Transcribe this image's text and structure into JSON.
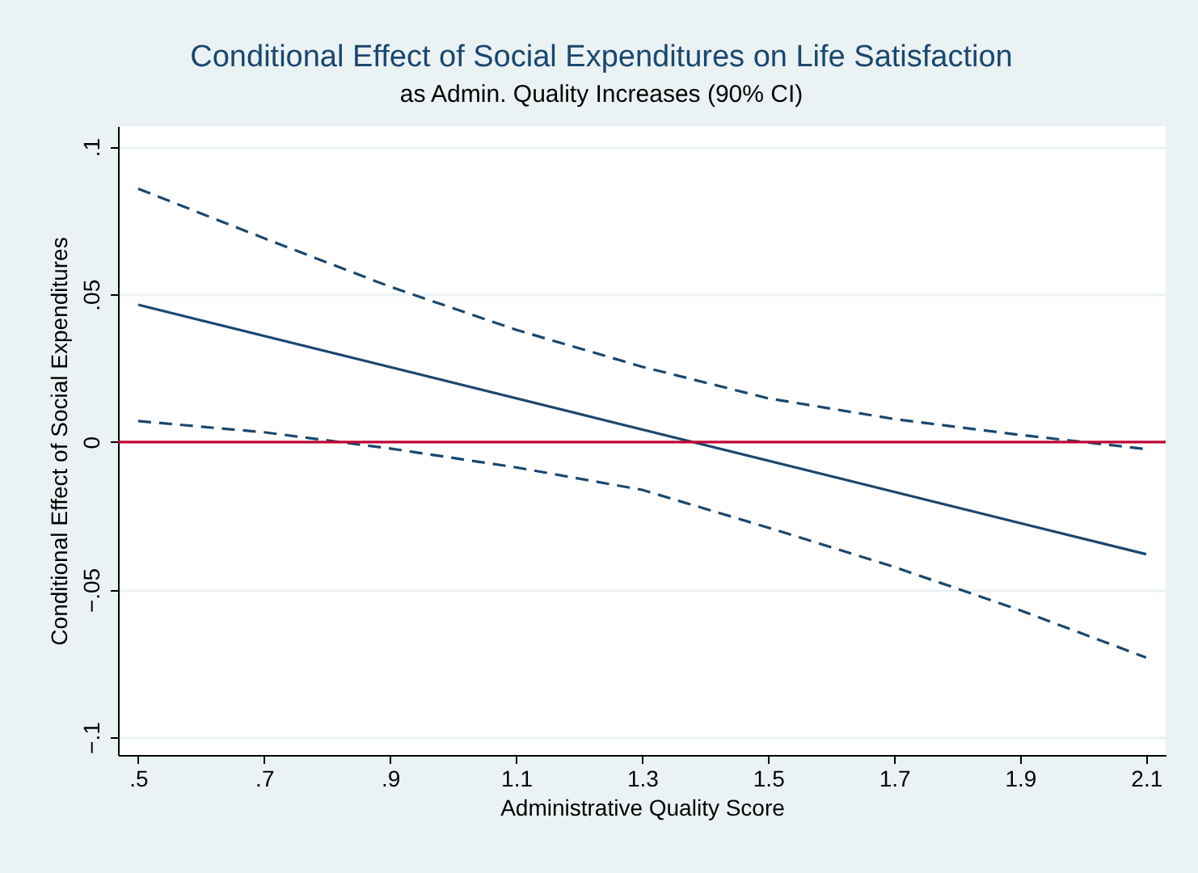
{
  "chart_data": {
    "type": "line",
    "title": "Conditional Effect of Social Expenditures on Life Satisfaction",
    "subtitle": "as Admin. Quality Increases (90% CI)",
    "xlabel": "Administrative Quality Score",
    "ylabel": "Conditional Effect of Social Expenditures",
    "xlim": [
      0.468,
      2.131
    ],
    "ylim": [
      -0.106,
      0.107
    ],
    "xticks": [
      {
        "value": 0.5,
        "label": ".5"
      },
      {
        "value": 0.7,
        "label": ".7"
      },
      {
        "value": 0.9,
        "label": ".9"
      },
      1.1,
      1.3,
      1.5,
      1.7,
      1.9,
      2.1
    ],
    "yticks": [
      {
        "value": -0.1,
        "label": "−.1"
      },
      {
        "value": -0.05,
        "label": "−.05"
      },
      0,
      {
        "value": 0.05,
        "label": ".05"
      },
      {
        "value": 0.1,
        "label": ".1"
      }
    ],
    "grid": "y",
    "marker": "none",
    "series": [
      {
        "color": "#1a476f",
        "line_style": "solid",
        "x": [
          0.5,
          2.1
        ],
        "values": [
          0.0465,
          -0.038
        ]
      },
      {
        "color": "#1a476f",
        "line_style": "dashed",
        "x": [
          0.5,
          0.7,
          0.9,
          1.1,
          1.3,
          1.5,
          1.7,
          1.9,
          2.1
        ],
        "values": [
          0.0858,
          0.069,
          0.0526,
          0.038,
          0.0255,
          0.0148,
          0.0078,
          0.0024,
          -0.0024
        ]
      },
      {
        "color": "#1a476f",
        "line_style": "dashed",
        "x": [
          0.5,
          0.7,
          0.9,
          1.1,
          1.3,
          1.5,
          1.7,
          1.9,
          2.1
        ],
        "values": [
          0.0071,
          0.0033,
          -0.0022,
          -0.0086,
          -0.0162,
          -0.029,
          -0.0423,
          -0.057,
          -0.073
        ]
      }
    ],
    "ref_lines": [
      {
        "axis": "y",
        "value": 0,
        "color": "#c10534"
      }
    ]
  }
}
